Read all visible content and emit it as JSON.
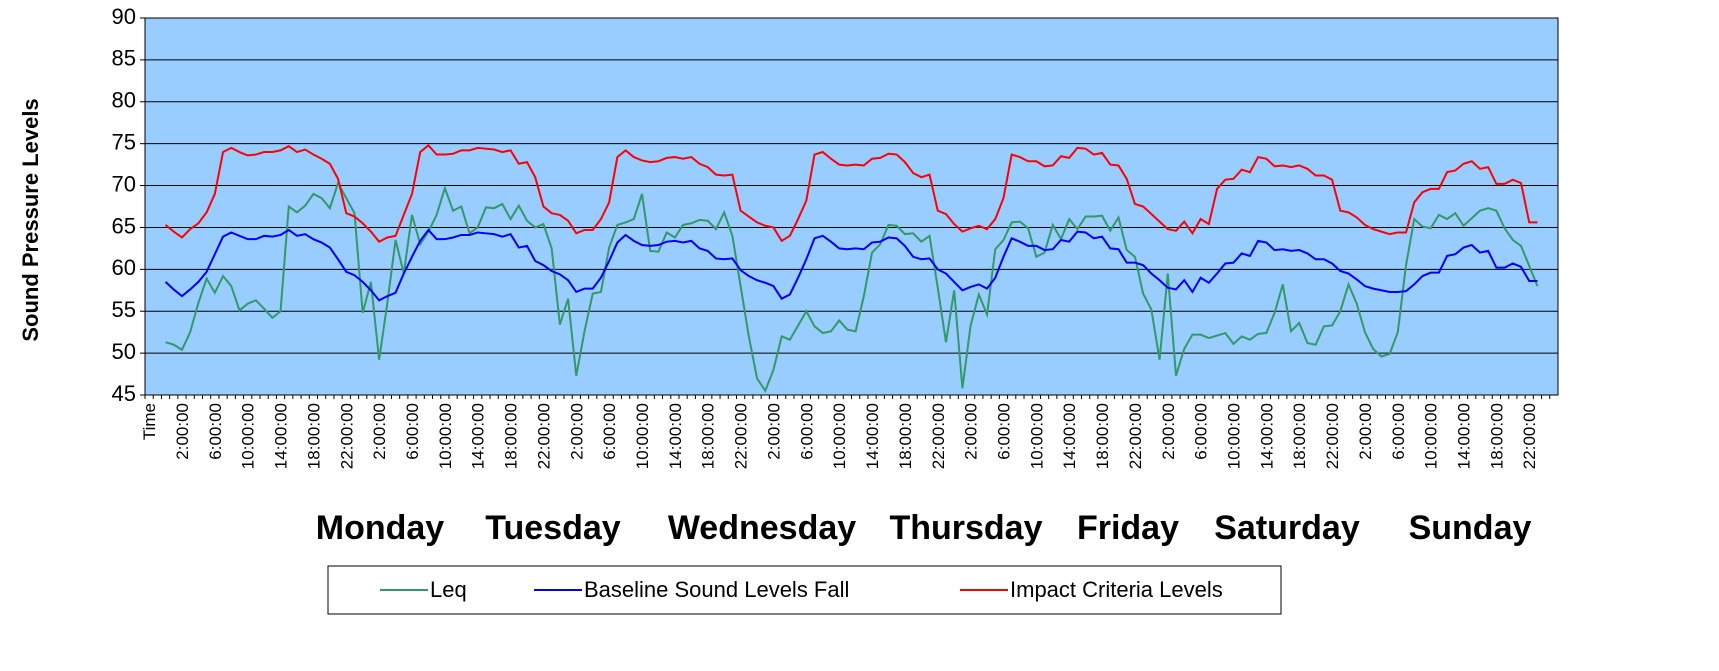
{
  "chart_data": {
    "type": "line",
    "y_label": "Sound Pressure Levels",
    "ylim": [
      45,
      90
    ],
    "yticks": [
      45,
      50,
      55,
      60,
      65,
      70,
      75,
      80,
      85,
      90
    ],
    "grid": true,
    "plot_background": "#99ccff",
    "day_labels": [
      "Monday",
      "Tuesday",
      "Wednesday",
      "Thursday",
      "Friday",
      "Saturday",
      "Sunday"
    ],
    "categories": [
      "Time",
      null,
      null,
      null,
      "2:00:00",
      null,
      null,
      null,
      "6:00:00",
      null,
      null,
      null,
      "10:00:00",
      null,
      null,
      null,
      "14:00:00",
      null,
      null,
      null,
      "18:00:00",
      null,
      null,
      null,
      "22:00:00",
      null,
      null,
      null,
      "2:00:00",
      null,
      null,
      null,
      "6:00:00",
      null,
      null,
      null,
      "10:00:00",
      null,
      null,
      null,
      "14:00:00",
      null,
      null,
      null,
      "18:00:00",
      null,
      null,
      null,
      "22:00:00",
      null,
      null,
      null,
      "2:00:00",
      null,
      null,
      null,
      "6:00:00",
      null,
      null,
      null,
      "10:00:00",
      null,
      null,
      null,
      "14:00:00",
      null,
      null,
      null,
      "18:00:00",
      null,
      null,
      null,
      "22:00:00",
      null,
      null,
      null,
      "2:00:00",
      null,
      null,
      null,
      "6:00:00",
      null,
      null,
      null,
      "10:00:00",
      null,
      null,
      null,
      "14:00:00",
      null,
      null,
      null,
      "18:00:00",
      null,
      null,
      null,
      "22:00:00",
      null,
      null,
      null,
      "2:00:00",
      null,
      null,
      null,
      "6:00:00",
      null,
      null,
      null,
      "10:00:00",
      null,
      null,
      null,
      "14:00:00",
      null,
      null,
      null,
      "18:00:00",
      null,
      null,
      null,
      "22:00:00",
      null,
      null,
      null,
      "2:00:00",
      null,
      null,
      null,
      "6:00:00",
      null,
      null,
      null,
      "10:00:00",
      null,
      null,
      null,
      "14:00:00",
      null,
      null,
      null,
      "18:00:00",
      null,
      null,
      null,
      "22:00:00",
      null,
      null,
      null,
      "2:00:00",
      null,
      null,
      null,
      "6:00:00",
      null,
      null,
      null,
      "10:00:00",
      null,
      null,
      null,
      "14:00:00",
      null,
      null,
      null,
      "18:00:00",
      null,
      null,
      null,
      "22:00:00",
      null,
      null,
      null
    ],
    "series": [
      {
        "name": "Leq",
        "color": "#339966",
        "values": [
          null,
          null,
          51.3,
          51,
          50.4,
          52.5,
          56,
          58.9,
          57.2,
          59.2,
          58,
          55.1,
          55.9,
          56.3,
          55.3,
          54.2,
          55,
          67.5,
          66.8,
          67.6,
          69,
          68.5,
          67.3,
          70.3,
          68.5,
          66.7,
          54.8,
          58.5,
          49.2,
          56,
          63.5,
          59.5,
          66.5,
          63,
          64.5,
          66.5,
          69.7,
          67,
          67.5,
          64.3,
          65,
          67.4,
          67.3,
          67.8,
          66,
          67.6,
          65.8,
          65,
          65.4,
          62.5,
          53.4,
          56.5,
          47.3,
          52.6,
          57.1,
          57.3,
          62.6,
          65.3,
          65.6,
          66,
          69,
          62.2,
          62.1,
          64.4,
          63.8,
          65.3,
          65.5,
          65.9,
          65.8,
          64.8,
          66.8,
          64,
          58,
          52,
          47,
          45.5,
          48,
          52,
          51.6,
          53.3,
          55,
          53.2,
          52.4,
          52.6,
          53.9,
          52.8,
          52.6,
          56.8,
          62,
          63,
          65.3,
          65.2,
          64.2,
          64.3,
          63.3,
          64,
          57.8,
          51.3,
          57.5,
          45.8,
          53.3,
          57,
          54.6,
          62.4,
          63.5,
          65.6,
          65.7,
          64.9,
          61.5,
          62,
          65.3,
          63.6,
          66,
          64.8,
          66.3,
          66.3,
          66.4,
          64.6,
          66.2,
          62.3,
          61.5,
          57.1,
          55.2,
          49.2,
          59.5,
          47.3,
          50.5,
          52.2,
          52.2,
          51.8,
          52.1,
          52.4,
          51.1,
          52,
          51.6,
          52.3,
          52.4,
          54.8,
          58.2,
          52.6,
          53.6,
          51.2,
          51,
          53.2,
          53.3,
          55,
          58.2,
          55.9,
          52.5,
          50.5,
          49.6,
          49.9,
          52.5,
          60.5,
          66,
          65.1,
          64.9,
          66.5,
          66,
          66.7,
          65.2,
          66.1,
          67,
          67.3,
          67,
          64.9,
          63.5,
          62.8,
          60.4,
          58,
          null,
          null
        ]
      },
      {
        "name": "Baseline Sound Levels Fall",
        "color": "#0000ff",
        "values": [
          null,
          null,
          58.5,
          57.6,
          56.8,
          57.6,
          58.5,
          59.7,
          61.8,
          63.9,
          64.4,
          64,
          63.6,
          63.6,
          64,
          63.9,
          64.1,
          64.7,
          64,
          64.2,
          63.6,
          63.2,
          62.6,
          61.2,
          59.7,
          59.3,
          58.5,
          57.5,
          56.3,
          56.8,
          57.2,
          59.5,
          61.5,
          63.4,
          64.7,
          63.6,
          63.6,
          63.8,
          64.1,
          64.1,
          64.4,
          64.3,
          64.2,
          63.9,
          64.2,
          62.6,
          62.8,
          61,
          60.5,
          59.8,
          59.4,
          58.7,
          57.3,
          57.7,
          57.7,
          59,
          61,
          63.2,
          64.1,
          63.4,
          62.9,
          62.8,
          62.9,
          63.3,
          63.4,
          63.2,
          63.4,
          62.5,
          62.2,
          61.3,
          61.2,
          61.3,
          59.9,
          59.2,
          58.7,
          58.4,
          58,
          56.5,
          57,
          59,
          61.2,
          63.7,
          64,
          63.3,
          62.5,
          62.4,
          62.5,
          62.4,
          63.2,
          63.3,
          63.8,
          63.7,
          62.8,
          61.5,
          61.2,
          61.3,
          60,
          59.5,
          58.5,
          57.5,
          57.9,
          58.2,
          57.7,
          59,
          61.5,
          63.7,
          63.3,
          62.8,
          62.8,
          62.3,
          62.4,
          63.5,
          63.3,
          64.5,
          64.4,
          63.7,
          63.9,
          62.5,
          62.4,
          60.8,
          60.8,
          60.5,
          59.5,
          58.7,
          57.8,
          57.6,
          58.7,
          57.3,
          59,
          58.4,
          59.5,
          60.7,
          60.8,
          61.9,
          61.6,
          63.4,
          63.2,
          62.3,
          62.4,
          62.2,
          62.3,
          61.9,
          61.2,
          61.2,
          60.7,
          59.8,
          59.5,
          58.8,
          58,
          57.7,
          57.5,
          57.3,
          57.3,
          57.4,
          58.2,
          59.2,
          59.6,
          59.6,
          61.6,
          61.8,
          62.6,
          62.9,
          62,
          62.2,
          60.2,
          60.2,
          60.7,
          60.3,
          58.6,
          58.6,
          null,
          null
        ]
      },
      {
        "name": "Impact Criteria Levels",
        "color": "#ff0000",
        "values": [
          null,
          null,
          65.3,
          64.5,
          63.8,
          64.8,
          65.5,
          66.8,
          69,
          74,
          74.5,
          74,
          73.6,
          73.7,
          74,
          74,
          74.2,
          74.7,
          74,
          74.3,
          73.7,
          73.2,
          72.6,
          70.8,
          66.7,
          66.3,
          65.5,
          64.5,
          63.3,
          63.8,
          64,
          66.5,
          69,
          74,
          74.8,
          73.7,
          73.7,
          73.8,
          74.2,
          74.2,
          74.5,
          74.4,
          74.3,
          74,
          74.2,
          72.6,
          72.8,
          71,
          67.5,
          66.7,
          66.5,
          65.8,
          64.3,
          64.7,
          64.7,
          66,
          68,
          73.4,
          74.2,
          73.4,
          73,
          72.8,
          72.9,
          73.3,
          73.4,
          73.2,
          73.4,
          72.6,
          72.2,
          71.3,
          71.2,
          71.3,
          67,
          66.3,
          65.6,
          65.2,
          65,
          63.4,
          64,
          66,
          68.2,
          73.7,
          74,
          73.2,
          72.5,
          72.4,
          72.5,
          72.4,
          73.2,
          73.3,
          73.8,
          73.7,
          72.8,
          71.5,
          71,
          71.3,
          67,
          66.6,
          65.4,
          64.5,
          64.9,
          65.2,
          64.8,
          66,
          68.5,
          73.7,
          73.4,
          72.9,
          72.9,
          72.3,
          72.4,
          73.5,
          73.3,
          74.5,
          74.4,
          73.7,
          73.9,
          72.5,
          72.4,
          70.8,
          67.8,
          67.5,
          66.6,
          65.7,
          64.8,
          64.6,
          65.7,
          64.3,
          66,
          65.4,
          69.6,
          70.7,
          70.8,
          71.9,
          71.6,
          73.4,
          73.2,
          72.3,
          72.4,
          72.2,
          72.4,
          72,
          71.2,
          71.2,
          70.7,
          67,
          66.8,
          66.2,
          65.3,
          64.8,
          64.5,
          64.2,
          64.4,
          64.4,
          68,
          69.2,
          69.6,
          69.6,
          71.6,
          71.8,
          72.6,
          72.9,
          72,
          72.2,
          70.2,
          70.2,
          70.7,
          70.3,
          65.6,
          65.6,
          null,
          null
        ]
      }
    ]
  }
}
